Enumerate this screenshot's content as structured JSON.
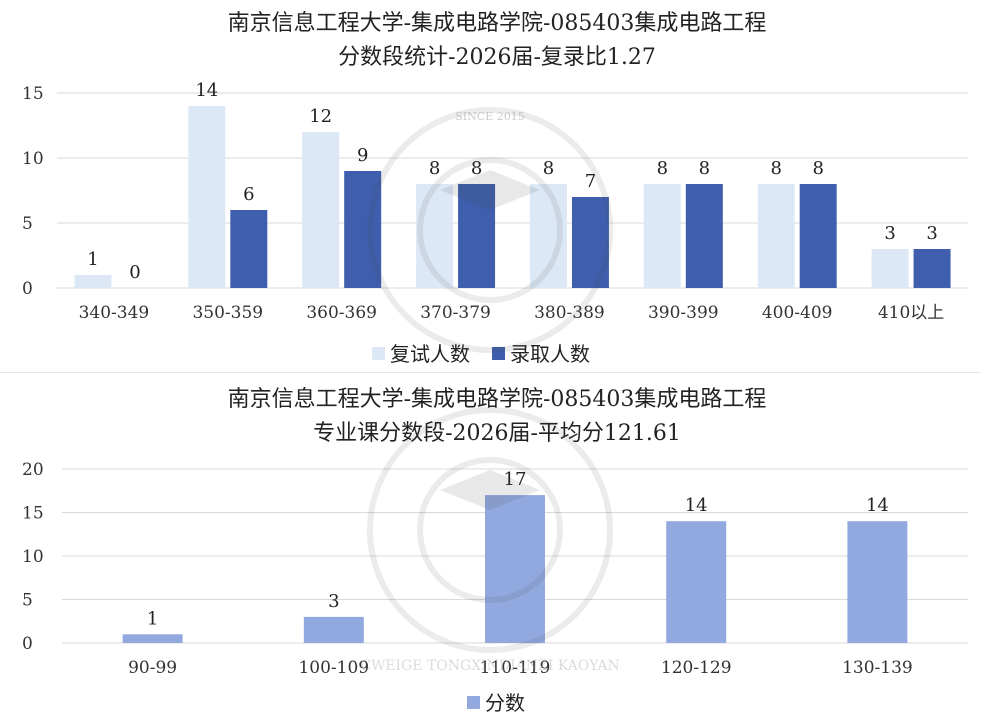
{
  "chart_data": [
    {
      "type": "bar",
      "title_lines": [
        "南京信息工程大学-集成电路学院-085403集成电路工程",
        "分数段统计-2026届-复录比1.27"
      ],
      "categories": [
        "340-349",
        "350-359",
        "360-369",
        "370-379",
        "380-389",
        "390-399",
        "400-409",
        "410以上"
      ],
      "series": [
        {
          "name": "复试人数",
          "values": [
            1,
            14,
            12,
            8,
            8,
            8,
            8,
            3
          ],
          "color": "#dde8f6"
        },
        {
          "name": "录取人数",
          "values": [
            0,
            6,
            9,
            8,
            7,
            8,
            8,
            3
          ],
          "color": "#3f5fae"
        }
      ],
      "ylim": [
        0,
        15
      ],
      "yticks": [
        0,
        5,
        10,
        15
      ],
      "grid": true,
      "legend": "bottom"
    },
    {
      "type": "bar",
      "title_lines": [
        "南京信息工程大学-集成电路学院-085403集成电路工程",
        "专业课分数段-2026届-平均分121.61"
      ],
      "categories": [
        "90-99",
        "100-109",
        "110-119",
        "120-129",
        "130-139"
      ],
      "series": [
        {
          "name": "分数",
          "values": [
            1,
            3,
            17,
            14,
            14
          ],
          "color": "#91a9df"
        }
      ],
      "ylim": [
        0,
        20
      ],
      "yticks": [
        0,
        5,
        10,
        15,
        20
      ],
      "grid": true,
      "legend": "bottom"
    }
  ],
  "watermark": {
    "since": "SINCE 2015",
    "arc_text": "CWEIGE TONGXINDIANZI KAOYAN"
  }
}
